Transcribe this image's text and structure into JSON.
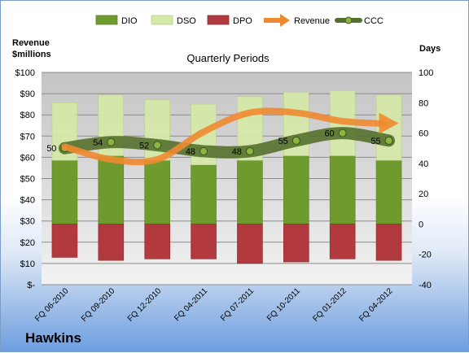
{
  "chart_data": {
    "type": "bar",
    "title": "Quarterly Periods",
    "company": "Hawkins",
    "left_axis": {
      "title_line1": "Revenue",
      "title_line2": "$millions",
      "ylim": [
        0,
        100
      ],
      "tick_labels": [
        "$-",
        "$10",
        "$20",
        "$30",
        "$40",
        "$50",
        "$60",
        "$70",
        "$80",
        "$90",
        "$100"
      ]
    },
    "right_axis": {
      "title": "Days",
      "ylim": [
        -40,
        100
      ],
      "tick_labels": [
        "-40",
        "-20",
        "0",
        "20",
        "40",
        "60",
        "80",
        "100"
      ]
    },
    "grid": true,
    "legend_position": "top",
    "categories": [
      "FQ 06-2010",
      "FQ 09-2010",
      "FQ 12-2010",
      "FQ 04-2011",
      "FQ 07-2011",
      "FQ 10-2011",
      "FQ 01-2012",
      "FQ 04-2012"
    ],
    "series": [
      {
        "name": "DIO",
        "type": "stacked-bar",
        "axis": "right",
        "color": "#6f9a2e",
        "values": [
          42,
          45,
          42,
          39,
          42,
          45,
          45,
          42
        ]
      },
      {
        "name": "DSO",
        "type": "stacked-bar",
        "axis": "right",
        "color": "#d6e8a8",
        "values": [
          38,
          40,
          40,
          40,
          42,
          42,
          43,
          43
        ]
      },
      {
        "name": "DPO",
        "type": "stacked-bar-negative",
        "axis": "right",
        "color": "#b23a3e",
        "values": [
          -22,
          -24,
          -23,
          -23,
          -26,
          -25,
          -23,
          -24
        ]
      },
      {
        "name": "Revenue",
        "type": "line",
        "axis": "left",
        "color": "#f08a30",
        "values": [
          65,
          59,
          59,
          72,
          81,
          81,
          77,
          76
        ]
      },
      {
        "name": "CCC",
        "type": "line",
        "axis": "right",
        "color": "#55702e",
        "values": [
          50,
          54,
          52,
          48,
          48,
          55,
          60,
          55
        ]
      }
    ],
    "data_labels": [
      "50",
      "54",
      "52",
      "48",
      "48",
      "55",
      "60",
      "55"
    ]
  }
}
